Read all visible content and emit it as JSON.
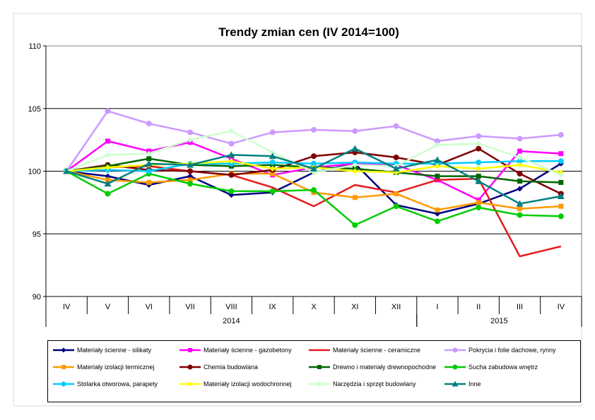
{
  "chart_data": {
    "type": "line",
    "title": "Trendy zmian cen (IV 2014=100)",
    "categories": [
      "IV",
      "V",
      "VI",
      "VII",
      "VIII",
      "IX",
      "X",
      "XI",
      "XII",
      "I",
      "II",
      "III",
      "IV"
    ],
    "year_groups": [
      {
        "label": "2014",
        "from": 0,
        "to": 8
      },
      {
        "label": "2015",
        "from": 9,
        "to": 12
      }
    ],
    "ylim": [
      90,
      110
    ],
    "yticks": [
      90,
      95,
      100,
      105,
      110
    ],
    "grid": "horizontal",
    "legend_position": "bottom",
    "series": [
      {
        "name": "Materiały ścienne - silikaty",
        "color": "#000080",
        "marker": "diamond",
        "values": [
          100,
          99.6,
          98.9,
          99.6,
          98.1,
          98.3,
          99.9,
          100.6,
          97.3,
          96.6,
          97.4,
          98.6,
          100.6
        ]
      },
      {
        "name": "Materiały ścienne - gazobetony",
        "color": "#ff00ff",
        "marker": "square",
        "values": [
          100,
          102.4,
          101.6,
          102.3,
          101.0,
          99.7,
          100.3,
          100.6,
          100.5,
          99.3,
          97.7,
          101.6,
          101.4
        ]
      },
      {
        "name": "Materiały ścienne - ceramiczne",
        "color": "#e31a1c",
        "marker": "none",
        "values": [
          100,
          100.3,
          100.4,
          100.0,
          99.7,
          98.7,
          97.2,
          98.9,
          98.3,
          99.3,
          99.4,
          93.2,
          94.0
        ]
      },
      {
        "name": "Pokrycia i folie dachowe, rynny",
        "color": "#cc99ff",
        "marker": "circle",
        "values": [
          100,
          104.8,
          103.8,
          103.1,
          102.2,
          103.1,
          103.3,
          103.2,
          103.6,
          102.4,
          102.8,
          102.6,
          102.9
        ]
      },
      {
        "name": "Materiały izolacji termicznej",
        "color": "#ff9900",
        "marker": "square",
        "values": [
          100,
          99.3,
          99.1,
          99.3,
          99.8,
          99.8,
          98.3,
          97.9,
          98.2,
          96.9,
          97.5,
          97.0,
          97.2
        ]
      },
      {
        "name": "Chemia budowlana",
        "color": "#800000",
        "marker": "circle",
        "values": [
          100,
          100.5,
          100.1,
          100.0,
          99.7,
          100.1,
          101.2,
          101.5,
          101.1,
          100.5,
          101.8,
          99.8,
          98.2
        ]
      },
      {
        "name": "Drewno i materiały drewnopochodne",
        "color": "#006600",
        "marker": "square",
        "values": [
          100,
          100.4,
          101.0,
          100.5,
          100.4,
          100.5,
          100.3,
          100.2,
          99.9,
          99.6,
          99.6,
          99.2,
          99.1
        ]
      },
      {
        "name": "Sucha zabudowa wnętrz",
        "color": "#00cc00",
        "marker": "circle",
        "values": [
          100,
          98.2,
          99.8,
          99.0,
          98.4,
          98.4,
          98.5,
          95.7,
          97.2,
          96.0,
          97.1,
          96.5,
          96.4
        ]
      },
      {
        "name": "Stolarka otworowa, parapety",
        "color": "#00ccff",
        "marker": "circle",
        "values": [
          100,
          100.1,
          100.0,
          100.6,
          100.6,
          100.7,
          100.6,
          100.7,
          100.6,
          100.6,
          100.7,
          100.8,
          100.8
        ]
      },
      {
        "name": "Materiały izolacji wodochronnej",
        "color": "#ffff00",
        "marker": "diamond",
        "values": [
          100,
          100.3,
          100.5,
          100.6,
          100.8,
          100.2,
          100.3,
          100.0,
          99.9,
          100.4,
          100.2,
          100.5,
          99.9
        ]
      },
      {
        "name": "Narzędzia i sprzęt budowlany",
        "color": "#ccffcc",
        "marker": "diamond",
        "values": [
          100,
          101.3,
          101.4,
          102.5,
          103.2,
          101.5,
          99.9,
          100.5,
          100.4,
          102.1,
          102.2,
          101.1,
          99.7
        ]
      },
      {
        "name": "Inne",
        "color": "#008080",
        "marker": "triangle",
        "values": [
          100,
          99.0,
          100.6,
          100.5,
          101.3,
          101.2,
          100.2,
          101.8,
          100.2,
          100.9,
          99.2,
          97.4,
          98.0
        ]
      }
    ]
  }
}
